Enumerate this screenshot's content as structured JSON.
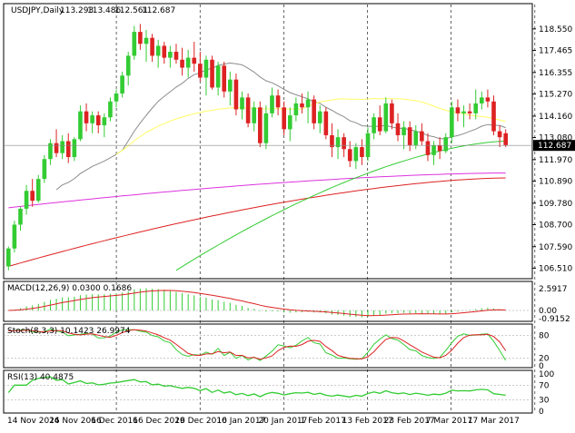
{
  "chart_data": {
    "type": "candlestick",
    "title": "USDJPY,Daily",
    "ohlc_header": [
      "113.293",
      "113.486",
      "112.561",
      "112.687"
    ],
    "price_axis": {
      "ticks": [
        "118.550",
        "117.465",
        "116.355",
        "115.270",
        "114.160",
        "113.080",
        "111.970",
        "110.890",
        "109.780",
        "108.700",
        "107.590",
        "106.510"
      ],
      "ylim": [
        106.3,
        119.0
      ],
      "current_price": "112.687"
    },
    "date_labels": [
      "14 Nov 2016",
      "24 Nov 2016",
      "6 Dec 2016",
      "16 Dec 2016",
      "29 Dec 2016",
      "10 Jan 2017",
      "20 Jan 2017",
      "1 Feb 2017",
      "13 Feb 2017",
      "23 Feb 2017",
      "7 Mar 2017",
      "17 Mar 2017"
    ],
    "candles": [
      [
        106.6,
        107.6,
        106.4,
        107.5
      ],
      [
        107.5,
        108.9,
        107.3,
        108.7
      ],
      [
        108.7,
        109.6,
        108.4,
        109.5
      ],
      [
        109.5,
        110.7,
        109.2,
        110.4
      ],
      [
        110.4,
        111.0,
        109.6,
        109.9
      ],
      [
        109.9,
        111.2,
        109.8,
        111.0
      ],
      [
        111.0,
        112.2,
        110.8,
        112.0
      ],
      [
        112.0,
        113.0,
        111.7,
        112.8
      ],
      [
        112.8,
        113.5,
        112.1,
        112.3
      ],
      [
        112.3,
        113.2,
        112.0,
        112.9
      ],
      [
        112.9,
        113.3,
        111.8,
        112.1
      ],
      [
        112.1,
        113.1,
        111.9,
        113.0
      ],
      [
        113.0,
        114.7,
        112.9,
        114.4
      ],
      [
        114.4,
        114.8,
        113.4,
        113.8
      ],
      [
        113.8,
        114.4,
        113.3,
        114.2
      ],
      [
        114.2,
        114.4,
        113.3,
        113.7
      ],
      [
        113.7,
        114.3,
        113.1,
        114.1
      ],
      [
        114.1,
        115.1,
        113.9,
        114.9
      ],
      [
        114.9,
        115.5,
        114.6,
        115.3
      ],
      [
        115.3,
        116.4,
        115.1,
        116.2
      ],
      [
        116.2,
        117.4,
        115.7,
        117.2
      ],
      [
        117.2,
        118.7,
        117.0,
        118.4
      ],
      [
        118.4,
        118.8,
        117.5,
        117.8
      ],
      [
        117.8,
        118.5,
        116.9,
        118.1
      ],
      [
        118.1,
        118.3,
        116.9,
        117.2
      ],
      [
        117.2,
        118.0,
        116.6,
        117.7
      ],
      [
        117.7,
        117.9,
        116.8,
        117.1
      ],
      [
        117.1,
        117.7,
        116.6,
        117.4
      ],
      [
        117.4,
        117.8,
        116.8,
        117.0
      ],
      [
        117.0,
        117.6,
        116.2,
        116.6
      ],
      [
        116.6,
        117.5,
        116.1,
        117.1
      ],
      [
        117.1,
        117.9,
        116.4,
        116.8
      ],
      [
        116.8,
        117.4,
        115.9,
        116.1
      ],
      [
        116.1,
        117.2,
        115.2,
        117.0
      ],
      [
        117.0,
        117.2,
        115.5,
        115.6
      ],
      [
        115.6,
        116.9,
        115.2,
        116.7
      ],
      [
        116.7,
        116.9,
        115.1,
        115.4
      ],
      [
        115.4,
        116.4,
        114.7,
        116.0
      ],
      [
        116.0,
        116.3,
        114.2,
        114.5
      ],
      [
        114.5,
        115.4,
        114.0,
        115.1
      ],
      [
        115.1,
        115.3,
        113.6,
        113.8
      ],
      [
        113.8,
        114.9,
        113.4,
        114.6
      ],
      [
        114.6,
        114.9,
        112.6,
        112.8
      ],
      [
        112.8,
        114.7,
        112.5,
        114.3
      ],
      [
        114.3,
        115.6,
        114.1,
        115.2
      ],
      [
        115.2,
        115.5,
        114.2,
        114.6
      ],
      [
        114.6,
        114.9,
        113.2,
        113.5
      ],
      [
        113.5,
        114.6,
        112.9,
        114.2
      ],
      [
        114.2,
        115.1,
        113.9,
        114.8
      ],
      [
        114.8,
        115.3,
        114.3,
        114.6
      ],
      [
        114.6,
        115.4,
        113.8,
        115.0
      ],
      [
        115.0,
        115.2,
        113.5,
        113.8
      ],
      [
        113.8,
        114.7,
        113.3,
        114.4
      ],
      [
        114.4,
        114.6,
        113.0,
        113.2
      ],
      [
        113.2,
        113.8,
        112.1,
        112.6
      ],
      [
        112.6,
        113.5,
        112.0,
        113.1
      ],
      [
        113.1,
        113.3,
        112.1,
        112.5
      ],
      [
        112.5,
        112.9,
        111.6,
        111.9
      ],
      [
        111.9,
        112.8,
        111.5,
        112.6
      ],
      [
        112.6,
        113.0,
        111.7,
        112.1
      ],
      [
        112.1,
        113.6,
        111.9,
        113.3
      ],
      [
        113.3,
        114.3,
        113.0,
        114.1
      ],
      [
        114.1,
        114.7,
        113.2,
        113.4
      ],
      [
        113.4,
        115.1,
        113.3,
        114.8
      ],
      [
        114.8,
        115.0,
        113.5,
        113.8
      ],
      [
        113.8,
        114.3,
        112.9,
        113.2
      ],
      [
        113.2,
        113.9,
        112.5,
        113.6
      ],
      [
        113.6,
        113.9,
        112.4,
        112.7
      ],
      [
        112.7,
        113.7,
        112.5,
        113.4
      ],
      [
        113.4,
        113.8,
        112.7,
        112.9
      ],
      [
        112.9,
        113.3,
        111.9,
        112.2
      ],
      [
        112.2,
        112.9,
        111.7,
        112.7
      ],
      [
        112.7,
        113.1,
        112.0,
        112.4
      ],
      [
        112.4,
        113.3,
        112.3,
        113.1
      ],
      [
        113.1,
        114.9,
        112.8,
        114.6
      ],
      [
        114.6,
        115.0,
        113.9,
        114.3
      ],
      [
        114.3,
        114.7,
        113.6,
        114.4
      ],
      [
        114.4,
        114.8,
        114.0,
        114.3
      ],
      [
        114.3,
        115.5,
        114.0,
        114.8
      ],
      [
        114.8,
        115.4,
        114.5,
        115.1
      ],
      [
        115.1,
        115.5,
        114.6,
        114.9
      ],
      [
        114.9,
        115.2,
        113.2,
        113.4
      ],
      [
        113.4,
        113.7,
        112.6,
        113.1
      ],
      [
        113.3,
        113.5,
        112.6,
        112.7
      ]
    ],
    "ma_fast_color": "#8c8c8c",
    "ma_mid_color": "#ffff66",
    "ma_slow_color": "#33cc33",
    "ma_200_color": "#dd2222",
    "ma_300_color": "#dd33dd",
    "current_price_color": "#000000",
    "macd": {
      "label": "MACD(12,26,9) 0.0300 0.1686",
      "ticks": [
        "2.5917",
        "0.00",
        "-0.9152"
      ],
      "line_color": "#dd2222",
      "hist_color": "#33cc33"
    },
    "stochastic": {
      "label": "Stoch(8,3,3) 10.1423 26.9974",
      "ticks": [
        "80",
        "20",
        "0"
      ],
      "k_color": "#33cc33",
      "d_color": "#dd2222"
    },
    "rsi": {
      "label": "RSI(13) 40.4875",
      "ticks": [
        "100",
        "70",
        "30",
        "0"
      ],
      "line_color": "#33cc33"
    },
    "grid": false,
    "up_color": "#33cc33",
    "down_color": "#dd2222",
    "legend": "none"
  }
}
